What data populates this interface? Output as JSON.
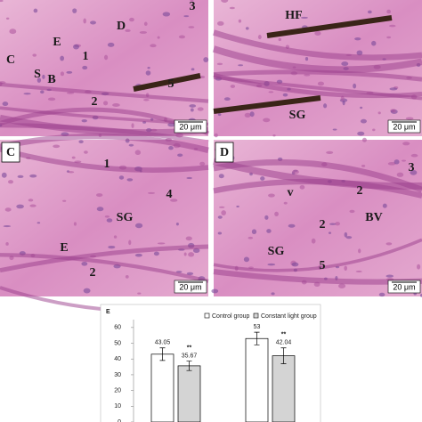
{
  "panels": [
    {
      "labels": [
        "C",
        "S",
        "B",
        "E",
        "1",
        "D",
        "3",
        "5",
        "2"
      ],
      "scale_bar": "20 μm"
    },
    {
      "labels": [
        "HF",
        "SG"
      ],
      "scale_bar": "20 μm"
    },
    {
      "panel_label": "C",
      "labels": [
        "1",
        "SG",
        "4",
        "E",
        "2"
      ],
      "scale_bar": "20 μm"
    },
    {
      "panel_label": "D",
      "labels": [
        "3",
        "v",
        "2",
        "2",
        "SG",
        "BV",
        "5"
      ],
      "scale_bar": "20 μm"
    }
  ],
  "chart_data": {
    "type": "bar",
    "panel_label": "E",
    "categories": [
      null,
      null
    ],
    "series": [
      {
        "name": "Control group",
        "color": "#ffffff",
        "values": [
          43.05,
          53
        ],
        "errors": [
          4,
          4
        ]
      },
      {
        "name": "Constant light group",
        "color": "#d4d4d4",
        "values": [
          35.67,
          42.04
        ],
        "errors": [
          3,
          5
        ],
        "significance": [
          "**",
          "**"
        ]
      }
    ],
    "ylim": [
      0,
      65
    ],
    "yticks": [
      0,
      10,
      20,
      30,
      40,
      50,
      60
    ],
    "legend": "top"
  }
}
